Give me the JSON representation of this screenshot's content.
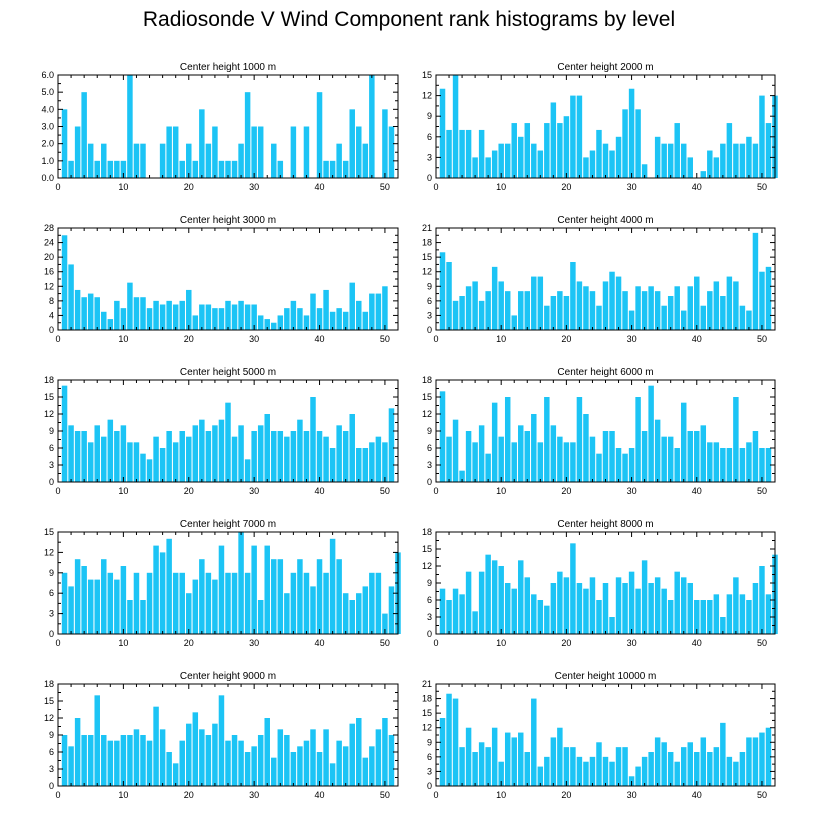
{
  "title": "Radiosonde V Wind Component rank histograms by level",
  "colors": {
    "bar": "#1cc4f5",
    "axis": "#000000"
  },
  "chart_data": [
    {
      "type": "bar",
      "title": "Center height 1000 m",
      "xlim": [
        0,
        52
      ],
      "ylim": [
        0,
        6
      ],
      "yticks": [
        0,
        1,
        2,
        3,
        4,
        5,
        6
      ],
      "ytick_labels": [
        "0.0",
        "1.0",
        "2.0",
        "3.0",
        "4.0",
        "5.0",
        "6.0"
      ],
      "xticks": [
        0,
        10,
        20,
        30,
        40,
        50
      ],
      "xtick_labels": [
        "0",
        "10",
        "20",
        "30",
        "40",
        "50"
      ],
      "values": [
        4,
        1,
        3,
        5,
        2,
        1,
        2,
        1,
        1,
        1,
        6,
        2,
        2,
        0,
        0,
        2,
        3,
        3,
        1,
        2,
        1,
        4,
        2,
        3,
        1,
        1,
        1,
        2,
        5,
        3,
        3,
        0,
        2,
        1,
        0,
        3,
        0,
        3,
        0,
        5,
        1,
        1,
        2,
        1,
        4,
        3,
        2,
        6,
        0,
        4,
        3
      ]
    },
    {
      "type": "bar",
      "title": "Center height 2000 m",
      "xlim": [
        0,
        52
      ],
      "ylim": [
        0,
        15
      ],
      "yticks": [
        0,
        3,
        6,
        9,
        12,
        15
      ],
      "ytick_labels": [
        "0",
        "3",
        "6",
        "9",
        "12",
        "15"
      ],
      "xticks": [
        0,
        10,
        20,
        30,
        40,
        50
      ],
      "xtick_labels": [
        "0",
        "10",
        "20",
        "30",
        "40",
        "50"
      ],
      "values": [
        13,
        7,
        15,
        7,
        7,
        3,
        7,
        3,
        4,
        5,
        5,
        8,
        6,
        8,
        5,
        4,
        8,
        11,
        8,
        9,
        12,
        12,
        3,
        4,
        7,
        5,
        4,
        6,
        10,
        13,
        10,
        2,
        0,
        6,
        5,
        5,
        8,
        5,
        3,
        0,
        1,
        4,
        3,
        5,
        8,
        5,
        5,
        6,
        5,
        12,
        8,
        12
      ]
    },
    {
      "type": "bar",
      "title": "Center height 3000 m",
      "xlim": [
        0,
        52
      ],
      "ylim": [
        0,
        28
      ],
      "yticks": [
        0,
        4,
        8,
        12,
        16,
        20,
        24,
        28
      ],
      "ytick_labels": [
        "0",
        "4",
        "8",
        "12",
        "16",
        "20",
        "24",
        "28"
      ],
      "xticks": [
        0,
        10,
        20,
        30,
        40,
        50
      ],
      "xtick_labels": [
        "0",
        "10",
        "20",
        "30",
        "40",
        "50"
      ],
      "values": [
        26,
        18,
        11,
        9,
        10,
        9,
        5,
        3,
        8,
        6,
        13,
        9,
        9,
        6,
        8,
        7,
        8,
        7,
        8,
        11,
        4,
        7,
        7,
        6,
        6,
        8,
        7,
        8,
        7,
        7,
        4,
        3,
        2,
        4,
        6,
        8,
        6,
        4,
        10,
        6,
        11,
        5,
        6,
        5,
        13,
        8,
        5,
        10,
        10,
        12
      ]
    },
    {
      "type": "bar",
      "title": "Center height 4000 m",
      "xlim": [
        0,
        52
      ],
      "ylim": [
        0,
        21
      ],
      "yticks": [
        0,
        3,
        6,
        9,
        12,
        15,
        18,
        21
      ],
      "ytick_labels": [
        "0",
        "3",
        "6",
        "9",
        "12",
        "15",
        "18",
        "21"
      ],
      "xticks": [
        0,
        10,
        20,
        30,
        40,
        50
      ],
      "xtick_labels": [
        "0",
        "10",
        "20",
        "30",
        "40",
        "50"
      ],
      "values": [
        16,
        14,
        6,
        7,
        9,
        10,
        6,
        8,
        13,
        10,
        8,
        3,
        8,
        8,
        11,
        11,
        5,
        7,
        8,
        7,
        14,
        10,
        9,
        8,
        5,
        10,
        12,
        11,
        8,
        4,
        9,
        8,
        9,
        8,
        5,
        7,
        9,
        4,
        9,
        11,
        5,
        8,
        10,
        7,
        11,
        10,
        5,
        4,
        20,
        12,
        13
      ]
    },
    {
      "type": "bar",
      "title": "Center height 5000 m",
      "xlim": [
        0,
        52
      ],
      "ylim": [
        0,
        18
      ],
      "yticks": [
        0,
        3,
        6,
        9,
        12,
        15,
        18
      ],
      "ytick_labels": [
        "0",
        "3",
        "6",
        "9",
        "12",
        "15",
        "18"
      ],
      "xticks": [
        0,
        10,
        20,
        30,
        40,
        50
      ],
      "xtick_labels": [
        "0",
        "10",
        "20",
        "30",
        "40",
        "50"
      ],
      "values": [
        17,
        10,
        9,
        9,
        7,
        10,
        8,
        11,
        9,
        10,
        7,
        7,
        5,
        4,
        8,
        6,
        9,
        7,
        9,
        8,
        10,
        11,
        9,
        10,
        11,
        14,
        8,
        10,
        4,
        9,
        10,
        12,
        9,
        9,
        8,
        9,
        11,
        9,
        15,
        9,
        8,
        6,
        10,
        9,
        12,
        6,
        6,
        7,
        8,
        7,
        13
      ]
    },
    {
      "type": "bar",
      "title": "Center height 6000 m",
      "xlim": [
        0,
        52
      ],
      "ylim": [
        0,
        18
      ],
      "yticks": [
        0,
        3,
        6,
        9,
        12,
        15,
        18
      ],
      "ytick_labels": [
        "0",
        "3",
        "6",
        "9",
        "12",
        "15",
        "18"
      ],
      "xticks": [
        0,
        10,
        20,
        30,
        40,
        50
      ],
      "xtick_labels": [
        "0",
        "10",
        "20",
        "30",
        "40",
        "50"
      ],
      "values": [
        16,
        8,
        11,
        2,
        9,
        7,
        10,
        5,
        14,
        8,
        15,
        7,
        10,
        9,
        12,
        7,
        15,
        10,
        8,
        7,
        7,
        15,
        12,
        8,
        5,
        9,
        9,
        6,
        5,
        6,
        15,
        9,
        17,
        11,
        8,
        8,
        6,
        14,
        9,
        9,
        10,
        7,
        7,
        6,
        6,
        15,
        6,
        7,
        9,
        6,
        6
      ]
    },
    {
      "type": "bar",
      "title": "Center height 7000 m",
      "xlim": [
        0,
        52
      ],
      "ylim": [
        0,
        15
      ],
      "yticks": [
        0,
        3,
        6,
        9,
        12,
        15
      ],
      "ytick_labels": [
        "0",
        "3",
        "6",
        "9",
        "12",
        "15"
      ],
      "xticks": [
        0,
        10,
        20,
        30,
        40,
        50
      ],
      "xtick_labels": [
        "0",
        "10",
        "20",
        "30",
        "40",
        "50"
      ],
      "values": [
        9,
        7,
        11,
        10,
        8,
        8,
        11,
        9,
        8,
        10,
        5,
        9,
        5,
        9,
        13,
        12,
        14,
        9,
        9,
        6,
        8,
        11,
        9,
        8,
        13,
        9,
        9,
        15,
        9,
        13,
        5,
        13,
        11,
        11,
        6,
        9,
        11,
        9,
        7,
        11,
        9,
        14,
        11,
        6,
        5,
        6,
        7,
        9,
        9,
        3,
        7,
        12
      ]
    },
    {
      "type": "bar",
      "title": "Center height 8000 m",
      "xlim": [
        0,
        52
      ],
      "ylim": [
        0,
        18
      ],
      "yticks": [
        0,
        3,
        6,
        9,
        12,
        15,
        18
      ],
      "ytick_labels": [
        "0",
        "3",
        "6",
        "9",
        "12",
        "15",
        "18"
      ],
      "xticks": [
        0,
        10,
        20,
        30,
        40,
        50
      ],
      "xtick_labels": [
        "0",
        "10",
        "20",
        "30",
        "40",
        "50"
      ],
      "values": [
        8,
        6,
        8,
        7,
        11,
        4,
        11,
        14,
        13,
        12,
        9,
        8,
        13,
        10,
        7,
        6,
        5,
        9,
        11,
        10,
        16,
        9,
        8,
        10,
        6,
        9,
        3,
        10,
        9,
        11,
        8,
        13,
        9,
        10,
        8,
        6,
        11,
        10,
        9,
        6,
        6,
        6,
        7,
        3,
        7,
        10,
        7,
        6,
        9,
        12,
        7,
        14
      ]
    },
    {
      "type": "bar",
      "title": "Center height 9000 m",
      "xlim": [
        0,
        52
      ],
      "ylim": [
        0,
        18
      ],
      "yticks": [
        0,
        3,
        6,
        9,
        12,
        15,
        18
      ],
      "ytick_labels": [
        "0",
        "3",
        "6",
        "9",
        "12",
        "15",
        "18"
      ],
      "xticks": [
        0,
        10,
        20,
        30,
        40,
        50
      ],
      "xtick_labels": [
        "0",
        "10",
        "20",
        "30",
        "40",
        "50"
      ],
      "values": [
        9,
        7,
        12,
        9,
        9,
        16,
        9,
        8,
        8,
        9,
        9,
        10,
        9,
        8,
        14,
        10,
        6,
        4,
        8,
        11,
        13,
        10,
        9,
        11,
        16,
        8,
        9,
        8,
        6,
        7,
        9,
        12,
        5,
        10,
        9,
        6,
        7,
        8,
        10,
        6,
        10,
        4,
        8,
        7,
        11,
        12,
        5,
        7,
        10,
        12,
        9
      ]
    },
    {
      "type": "bar",
      "title": "Center height 10000 m",
      "xlim": [
        0,
        52
      ],
      "ylim": [
        0,
        21
      ],
      "yticks": [
        0,
        3,
        6,
        9,
        12,
        15,
        18,
        21
      ],
      "ytick_labels": [
        "0",
        "3",
        "6",
        "9",
        "12",
        "15",
        "18",
        "21"
      ],
      "xticks": [
        0,
        10,
        20,
        30,
        40,
        50
      ],
      "xtick_labels": [
        "0",
        "10",
        "20",
        "30",
        "40",
        "50"
      ],
      "values": [
        14,
        19,
        18,
        8,
        12,
        7,
        9,
        8,
        12,
        5,
        11,
        10,
        11,
        7,
        18,
        4,
        6,
        10,
        12,
        8,
        8,
        6,
        5,
        6,
        9,
        6,
        5,
        8,
        8,
        2,
        4,
        6,
        7,
        10,
        9,
        7,
        5,
        8,
        9,
        7,
        10,
        7,
        8,
        13,
        6,
        5,
        7,
        10,
        10,
        11,
        12
      ]
    }
  ]
}
